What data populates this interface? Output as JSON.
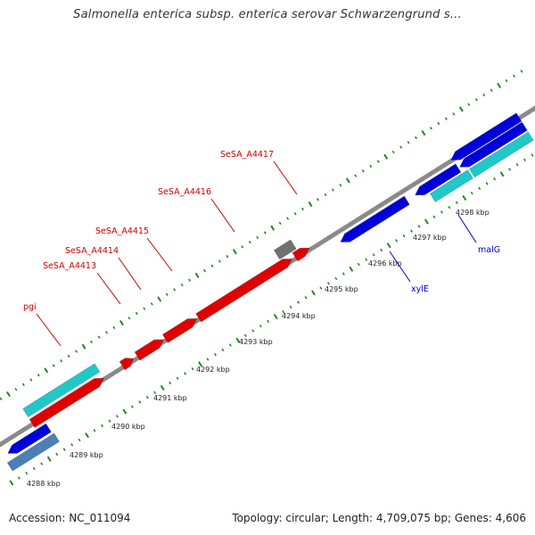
{
  "title": "Salmonella enterica subsp. enterica serovar Schwarzengrund s...",
  "footer": {
    "accession": "Accession: NC_011094",
    "topology": "Topology: circular; Length: 4,709,075 bp; Genes: 4,606"
  },
  "colors": {
    "backbone": "#8a8a8a",
    "forward_cds": "#e00000",
    "reverse_cds": "#0000d8",
    "teal_feature": "#20c8c8",
    "steel_feature": "#4a80b8",
    "grey_feature": "#707070",
    "tick": "#1f8a1f",
    "forward_label": "#cc0000",
    "reverse_label": "#0000cc"
  },
  "scale_labels": [
    "4288 kbp",
    "4289 kbp",
    "4290 kbp",
    "4291 kbp",
    "4292 kbp",
    "4293 kbp",
    "4294 kbp",
    "4295 kbp",
    "4296 kbp",
    "4297 kbp",
    "4298 kbp"
  ],
  "forward_gene_labels": [
    "pgi",
    "SeSA_A4413",
    "SeSA_A4414",
    "SeSA_A4415",
    "SeSA_A4416",
    "SeSA_A4417"
  ],
  "reverse_gene_labels": [
    "xylE",
    "malG"
  ]
}
